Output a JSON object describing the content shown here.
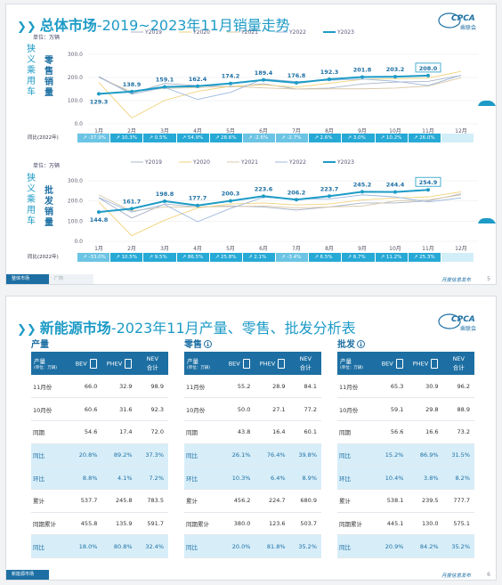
{
  "slide1": {
    "title_main": "总体市场",
    "title_mid": "-2019~2023年11月销量走势",
    "logo_text": "CPCA",
    "logo_sub": "乘联会",
    "unit": "单位：万辆",
    "months": [
      "1月",
      "2月",
      "3月",
      "4月",
      "5月",
      "6月",
      "7月",
      "8月",
      "9月",
      "10月",
      "11月",
      "12月"
    ],
    "legend": [
      "Y2019",
      "Y2020",
      "Y2021",
      "Y2022",
      "Y2023"
    ],
    "colors": {
      "Y2019": "#a9b4c8",
      "Y2020": "#f2d27a",
      "Y2021": "#d9c8a8",
      "Y2022": "#9fb9dd",
      "Y2023": "#1d9bc6"
    },
    "retail": {
      "vlabel_a": "狭义乘用车",
      "vlabel_b": "零售销量",
      "yticks": [
        "0.0",
        "100.0",
        "200.0",
        "300.0"
      ],
      "ymax": 300,
      "series": {
        "Y2019": [
          204,
          131,
          174,
          165,
          159,
          173,
          150,
          154,
          172,
          180,
          183,
          209
        ],
        "Y2020": [
          178,
          25,
          101,
          140,
          162,
          168,
          158,
          175,
          192,
          194,
          198,
          226
        ],
        "Y2021": [
          200,
          138,
          153,
          156,
          162,
          155,
          150,
          151,
          151,
          154,
          163,
          199
        ],
        "Y2022": [
          202,
          128,
          157,
          105,
          136,
          194,
          182,
          188,
          193,
          184,
          165,
          210
        ],
        "Y2023": [
          129.3,
          138.9,
          159.1,
          162.4,
          174.2,
          189.4,
          176.8,
          192.3,
          201.8,
          203.2,
          208.0
        ]
      },
      "labels": [
        "129.3",
        "138.9",
        "159.1",
        "162.4",
        "174.2",
        "189.4",
        "176.8",
        "192.3",
        "201.8",
        "203.2",
        "208.0"
      ],
      "yoy_label": "同比(2022年)",
      "yoy": [
        "-37.9%",
        "10.3%",
        "0.5%",
        "54.9%",
        "28.6%",
        "-2.6%",
        "-2.7%",
        "2.6%",
        "3.0%",
        "10.2%",
        "26.0%",
        ""
      ]
    },
    "wholesale": {
      "vlabel_a": "狭义乘用车",
      "vlabel_b": "批发销量",
      "yticks": [
        "0.0",
        "100.0",
        "200.0",
        "300.0"
      ],
      "ymax": 300,
      "series": {
        "Y2019": [
          215,
          115,
          185,
          170,
          175,
          170,
          155,
          170,
          190,
          190,
          200,
          235
        ],
        "Y2020": [
          195,
          28,
          105,
          165,
          185,
          190,
          180,
          185,
          205,
          215,
          220,
          245
        ],
        "Y2021": [
          230,
          150,
          170,
          170,
          172,
          175,
          165,
          170,
          175,
          200,
          205,
          230
        ],
        "Y2022": [
          217,
          145,
          182,
          97,
          163,
          218,
          210,
          210,
          230,
          220,
          195,
          215
        ],
        "Y2023": [
          144.8,
          161.7,
          198.8,
          177.7,
          200.3,
          223.6,
          206.2,
          223.7,
          245.2,
          244.4,
          254.9
        ]
      },
      "labels": [
        "144.8",
        "161.7",
        "198.8",
        "177.7",
        "200.3",
        "223.6",
        "206.2",
        "223.7",
        "245.2",
        "244.4",
        "254.9"
      ],
      "yoy_label": "同比(2022年)",
      "yoy": [
        "-33.0%",
        "10.5%",
        "9.5%",
        "86.5%",
        "25.8%",
        "2.1%",
        "-3.4%",
        "6.5%",
        "6.7%",
        "11.2%",
        "25.3%",
        ""
      ]
    },
    "footer_tab": "整体市场",
    "footer_tab2": "厂商",
    "footer_src": "月度信息发布",
    "page": "5"
  },
  "slide2": {
    "title_main": "新能源市场",
    "title_mid": "-2023年11月产量、零售、批发分析表",
    "logo_text": "CPCA",
    "logo_sub": "乘联会",
    "col_head": "产量",
    "col_sub": "(单位：万辆)",
    "headers": [
      "BEV",
      "PHEV",
      "NEV\n合计"
    ],
    "sections": [
      {
        "name": "产量",
        "has_icon": false,
        "rows": [
          {
            "k": "11月份",
            "v": [
              "66.0",
              "32.9",
              "98.9"
            ],
            "pct": false
          },
          {
            "k": "10月份",
            "v": [
              "60.6",
              "31.6",
              "92.3"
            ],
            "pct": false
          },
          {
            "k": "同期",
            "v": [
              "54.6",
              "17.4",
              "72.0"
            ],
            "pct": false
          },
          {
            "k": "同比",
            "v": [
              "20.8%",
              "89.2%",
              "37.3%"
            ],
            "pct": true
          },
          {
            "k": "环比",
            "v": [
              "8.8%",
              "4.1%",
              "7.2%"
            ],
            "pct": true
          },
          {
            "k": "累计",
            "v": [
              "537.7",
              "245.8",
              "783.5"
            ],
            "pct": false
          },
          {
            "k": "同期累计",
            "v": [
              "455.8",
              "135.9",
              "591.7"
            ],
            "pct": false
          },
          {
            "k": "同比",
            "v": [
              "18.0%",
              "80.8%",
              "32.4%"
            ],
            "pct": true
          }
        ]
      },
      {
        "name": "零售",
        "has_icon": true,
        "rows": [
          {
            "k": "11月份",
            "v": [
              "55.2",
              "28.9",
              "84.1"
            ],
            "pct": false
          },
          {
            "k": "10月份",
            "v": [
              "50.0",
              "27.1",
              "77.2"
            ],
            "pct": false
          },
          {
            "k": "同期",
            "v": [
              "43.8",
              "16.4",
              "60.1"
            ],
            "pct": false
          },
          {
            "k": "同比",
            "v": [
              "26.1%",
              "76.4%",
              "39.8%"
            ],
            "pct": true
          },
          {
            "k": "环比",
            "v": [
              "10.3%",
              "6.4%",
              "8.9%"
            ],
            "pct": true
          },
          {
            "k": "累计",
            "v": [
              "456.2",
              "224.7",
              "680.9"
            ],
            "pct": false
          },
          {
            "k": "同期累计",
            "v": [
              "380.0",
              "123.6",
              "503.7"
            ],
            "pct": false
          },
          {
            "k": "同比",
            "v": [
              "20.0%",
              "81.8%",
              "35.2%"
            ],
            "pct": true
          }
        ]
      },
      {
        "name": "批发",
        "has_icon": true,
        "rows": [
          {
            "k": "11月份",
            "v": [
              "65.3",
              "30.9",
              "96.2"
            ],
            "pct": false
          },
          {
            "k": "10月份",
            "v": [
              "59.1",
              "29.8",
              "88.9"
            ],
            "pct": false
          },
          {
            "k": "同期",
            "v": [
              "56.6",
              "16.6",
              "73.2"
            ],
            "pct": false
          },
          {
            "k": "同比",
            "v": [
              "15.2%",
              "86.9%",
              "31.5%"
            ],
            "pct": true
          },
          {
            "k": "环比",
            "v": [
              "10.4%",
              "3.8%",
              "8.2%"
            ],
            "pct": true
          },
          {
            "k": "累计",
            "v": [
              "538.1",
              "239.5",
              "777.7"
            ],
            "pct": false
          },
          {
            "k": "同期累计",
            "v": [
              "445.1",
              "130.0",
              "575.1"
            ],
            "pct": false
          },
          {
            "k": "同比",
            "v": [
              "20.9%",
              "84.2%",
              "35.2%"
            ],
            "pct": true
          }
        ]
      }
    ],
    "footer_tab": "新能源市场",
    "footer_src": "月度信息发布",
    "page": "6"
  }
}
